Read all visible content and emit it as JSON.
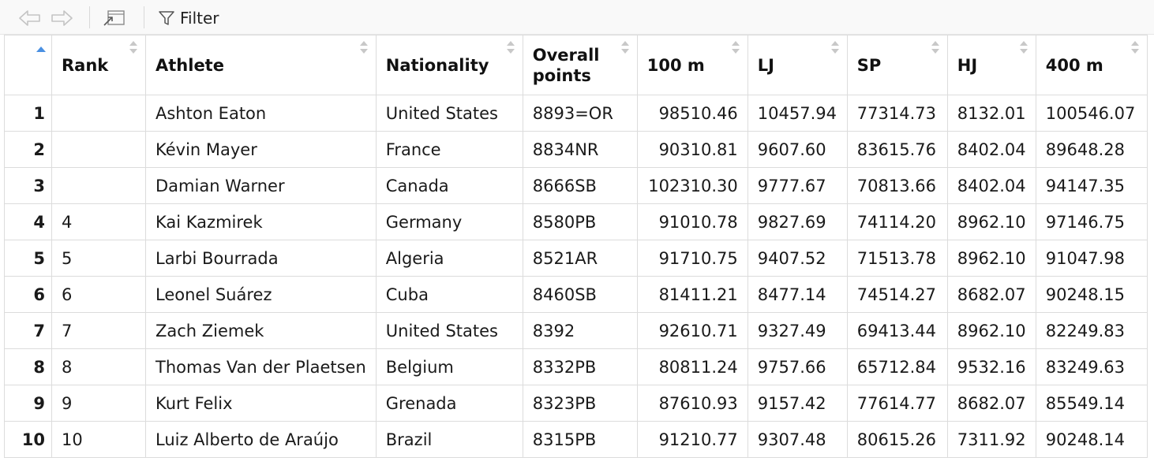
{
  "toolbar": {
    "back_icon": "back-arrow-icon",
    "forward_icon": "forward-arrow-icon",
    "popout_icon": "popout-window-icon",
    "filter_label": "Filter"
  },
  "table": {
    "columns": [
      "Rank",
      "Athlete",
      "Nationality",
      "Overall\npoints",
      "100 m",
      "LJ",
      "SP",
      "HJ",
      "400 m"
    ],
    "sorted_column": "row-index",
    "sort_direction": "ascending",
    "rows": [
      {
        "idx": "1",
        "rank": "",
        "athlete": "Ashton Eaton",
        "nationality": "United States",
        "overall": "8893=OR",
        "m100": "98510.46",
        "lj": "10457.94",
        "sp": "77314.73",
        "hj": "8132.01",
        "m400": "100546.07"
      },
      {
        "idx": "2",
        "rank": "",
        "athlete": "Kévin Mayer",
        "nationality": "France",
        "overall": "8834NR",
        "m100": "90310.81",
        "lj": "9607.60",
        "sp": "83615.76",
        "hj": "8402.04",
        "m400": "89648.28"
      },
      {
        "idx": "3",
        "rank": "",
        "athlete": "Damian Warner",
        "nationality": "Canada",
        "overall": "8666SB",
        "m100": "102310.30",
        "lj": "9777.67",
        "sp": "70813.66",
        "hj": "8402.04",
        "m400": "94147.35"
      },
      {
        "idx": "4",
        "rank": "4",
        "athlete": "Kai Kazmirek",
        "nationality": "Germany",
        "overall": "8580PB",
        "m100": "91010.78",
        "lj": "9827.69",
        "sp": "74114.20",
        "hj": "8962.10",
        "m400": "97146.75"
      },
      {
        "idx": "5",
        "rank": "5",
        "athlete": "Larbi Bourrada",
        "nationality": "Algeria",
        "overall": "8521AR",
        "m100": "91710.75",
        "lj": "9407.52",
        "sp": "71513.78",
        "hj": "8962.10",
        "m400": "91047.98"
      },
      {
        "idx": "6",
        "rank": "6",
        "athlete": "Leonel Suárez",
        "nationality": "Cuba",
        "overall": "8460SB",
        "m100": "81411.21",
        "lj": "8477.14",
        "sp": "74514.27",
        "hj": "8682.07",
        "m400": "90248.15"
      },
      {
        "idx": "7",
        "rank": "7",
        "athlete": "Zach Ziemek",
        "nationality": "United States",
        "overall": "8392",
        "m100": "92610.71",
        "lj": "9327.49",
        "sp": "69413.44",
        "hj": "8962.10",
        "m400": "82249.83"
      },
      {
        "idx": "8",
        "rank": "8",
        "athlete": "Thomas Van der Plaetsen",
        "nationality": "Belgium",
        "overall": "8332PB",
        "m100": "80811.24",
        "lj": "9757.66",
        "sp": "65712.84",
        "hj": "9532.16",
        "m400": "83249.63"
      },
      {
        "idx": "9",
        "rank": "9",
        "athlete": "Kurt Felix",
        "nationality": "Grenada",
        "overall": "8323PB",
        "m100": "87610.93",
        "lj": "9157.42",
        "sp": "77614.77",
        "hj": "8682.07",
        "m400": "85549.14"
      },
      {
        "idx": "10",
        "rank": "10",
        "athlete": "Luiz Alberto de Araújo",
        "nationality": "Brazil",
        "overall": "8315PB",
        "m100": "91210.77",
        "lj": "9307.48",
        "sp": "80615.26",
        "hj": "7311.92",
        "m400": "90248.14"
      }
    ]
  },
  "colors": {
    "sort_active": "#4a90e2",
    "border": "#dcdcdc",
    "toolbar_bg": "#f9f9f9"
  }
}
